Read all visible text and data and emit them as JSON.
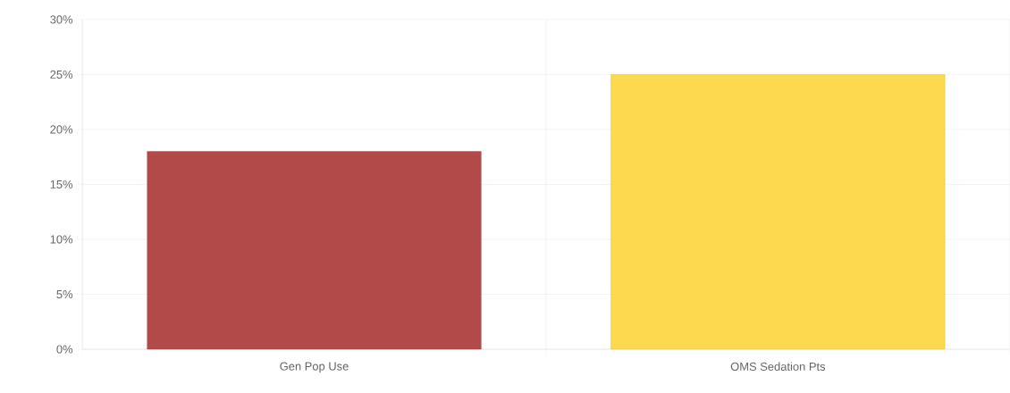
{
  "chart_data": {
    "type": "bar",
    "categories": [
      "Gen Pop Use",
      "OMS Sedation Pts"
    ],
    "values": [
      18,
      25
    ],
    "colors": [
      "#b34a4a",
      "#fdd94f"
    ],
    "ylim": [
      0,
      30
    ],
    "yticks": [
      {
        "value": 0,
        "label": "0%"
      },
      {
        "value": 5,
        "label": "5%"
      },
      {
        "value": 10,
        "label": "10%"
      },
      {
        "value": 15,
        "label": "15%"
      },
      {
        "value": 20,
        "label": "20%"
      },
      {
        "value": 25,
        "label": "25%"
      },
      {
        "value": 30,
        "label": "30%"
      }
    ],
    "grid": true
  }
}
